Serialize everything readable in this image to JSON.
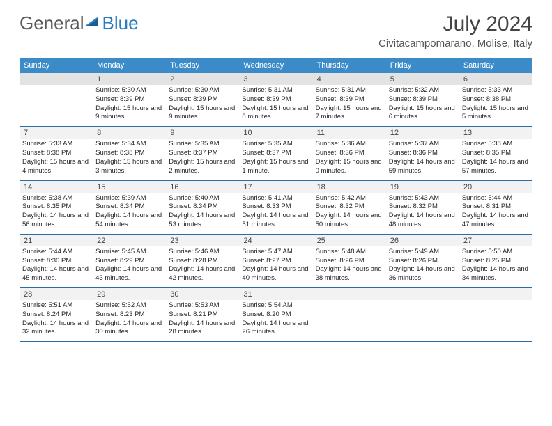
{
  "logo": {
    "text_general": "General",
    "text_blue": "Blue"
  },
  "title": "July 2024",
  "location": "Civitacampomarano, Molise, Italy",
  "header_bg": "#3b8bc9",
  "divider_color": "#2a6ea8",
  "date_strip_first_bg": "#e3e3e3",
  "date_strip_other_bg": "#f2f2f2",
  "day_names": [
    "Sunday",
    "Monday",
    "Tuesday",
    "Wednesday",
    "Thursday",
    "Friday",
    "Saturday"
  ],
  "weeks": [
    [
      {
        "date": "",
        "sunrise": "",
        "sunset": "",
        "daylight": ""
      },
      {
        "date": "1",
        "sunrise": "5:30 AM",
        "sunset": "8:39 PM",
        "daylight": "15 hours and 9 minutes."
      },
      {
        "date": "2",
        "sunrise": "5:30 AM",
        "sunset": "8:39 PM",
        "daylight": "15 hours and 9 minutes."
      },
      {
        "date": "3",
        "sunrise": "5:31 AM",
        "sunset": "8:39 PM",
        "daylight": "15 hours and 8 minutes."
      },
      {
        "date": "4",
        "sunrise": "5:31 AM",
        "sunset": "8:39 PM",
        "daylight": "15 hours and 7 minutes."
      },
      {
        "date": "5",
        "sunrise": "5:32 AM",
        "sunset": "8:39 PM",
        "daylight": "15 hours and 6 minutes."
      },
      {
        "date": "6",
        "sunrise": "5:33 AM",
        "sunset": "8:38 PM",
        "daylight": "15 hours and 5 minutes."
      }
    ],
    [
      {
        "date": "7",
        "sunrise": "5:33 AM",
        "sunset": "8:38 PM",
        "daylight": "15 hours and 4 minutes."
      },
      {
        "date": "8",
        "sunrise": "5:34 AM",
        "sunset": "8:38 PM",
        "daylight": "15 hours and 3 minutes."
      },
      {
        "date": "9",
        "sunrise": "5:35 AM",
        "sunset": "8:37 PM",
        "daylight": "15 hours and 2 minutes."
      },
      {
        "date": "10",
        "sunrise": "5:35 AM",
        "sunset": "8:37 PM",
        "daylight": "15 hours and 1 minute."
      },
      {
        "date": "11",
        "sunrise": "5:36 AM",
        "sunset": "8:36 PM",
        "daylight": "15 hours and 0 minutes."
      },
      {
        "date": "12",
        "sunrise": "5:37 AM",
        "sunset": "8:36 PM",
        "daylight": "14 hours and 59 minutes."
      },
      {
        "date": "13",
        "sunrise": "5:38 AM",
        "sunset": "8:35 PM",
        "daylight": "14 hours and 57 minutes."
      }
    ],
    [
      {
        "date": "14",
        "sunrise": "5:38 AM",
        "sunset": "8:35 PM",
        "daylight": "14 hours and 56 minutes."
      },
      {
        "date": "15",
        "sunrise": "5:39 AM",
        "sunset": "8:34 PM",
        "daylight": "14 hours and 54 minutes."
      },
      {
        "date": "16",
        "sunrise": "5:40 AM",
        "sunset": "8:34 PM",
        "daylight": "14 hours and 53 minutes."
      },
      {
        "date": "17",
        "sunrise": "5:41 AM",
        "sunset": "8:33 PM",
        "daylight": "14 hours and 51 minutes."
      },
      {
        "date": "18",
        "sunrise": "5:42 AM",
        "sunset": "8:32 PM",
        "daylight": "14 hours and 50 minutes."
      },
      {
        "date": "19",
        "sunrise": "5:43 AM",
        "sunset": "8:32 PM",
        "daylight": "14 hours and 48 minutes."
      },
      {
        "date": "20",
        "sunrise": "5:44 AM",
        "sunset": "8:31 PM",
        "daylight": "14 hours and 47 minutes."
      }
    ],
    [
      {
        "date": "21",
        "sunrise": "5:44 AM",
        "sunset": "8:30 PM",
        "daylight": "14 hours and 45 minutes."
      },
      {
        "date": "22",
        "sunrise": "5:45 AM",
        "sunset": "8:29 PM",
        "daylight": "14 hours and 43 minutes."
      },
      {
        "date": "23",
        "sunrise": "5:46 AM",
        "sunset": "8:28 PM",
        "daylight": "14 hours and 42 minutes."
      },
      {
        "date": "24",
        "sunrise": "5:47 AM",
        "sunset": "8:27 PM",
        "daylight": "14 hours and 40 minutes."
      },
      {
        "date": "25",
        "sunrise": "5:48 AM",
        "sunset": "8:26 PM",
        "daylight": "14 hours and 38 minutes."
      },
      {
        "date": "26",
        "sunrise": "5:49 AM",
        "sunset": "8:26 PM",
        "daylight": "14 hours and 36 minutes."
      },
      {
        "date": "27",
        "sunrise": "5:50 AM",
        "sunset": "8:25 PM",
        "daylight": "14 hours and 34 minutes."
      }
    ],
    [
      {
        "date": "28",
        "sunrise": "5:51 AM",
        "sunset": "8:24 PM",
        "daylight": "14 hours and 32 minutes."
      },
      {
        "date": "29",
        "sunrise": "5:52 AM",
        "sunset": "8:23 PM",
        "daylight": "14 hours and 30 minutes."
      },
      {
        "date": "30",
        "sunrise": "5:53 AM",
        "sunset": "8:21 PM",
        "daylight": "14 hours and 28 minutes."
      },
      {
        "date": "31",
        "sunrise": "5:54 AM",
        "sunset": "8:20 PM",
        "daylight": "14 hours and 26 minutes."
      },
      {
        "date": "",
        "sunrise": "",
        "sunset": "",
        "daylight": ""
      },
      {
        "date": "",
        "sunrise": "",
        "sunset": "",
        "daylight": ""
      },
      {
        "date": "",
        "sunrise": "",
        "sunset": "",
        "daylight": ""
      }
    ]
  ]
}
